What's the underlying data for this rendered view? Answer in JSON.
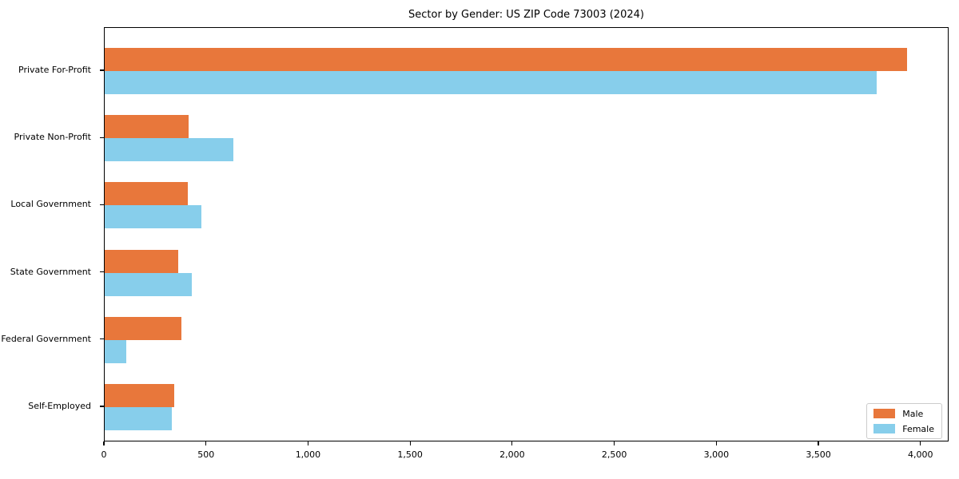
{
  "chart_data": {
    "type": "bar",
    "orientation": "horizontal",
    "title": "Sector by Gender: US ZIP Code 73003 (2024)",
    "categories": [
      "Private For-Profit",
      "Private Non-Profit",
      "Local Government",
      "State Government",
      "Federal Government",
      "Self-Employed"
    ],
    "series": [
      {
        "name": "Male",
        "color": "#e8773b",
        "values": [
          3930,
          410,
          405,
          360,
          375,
          340
        ]
      },
      {
        "name": "Female",
        "color": "#87ceeb",
        "values": [
          3780,
          630,
          475,
          425,
          105,
          330
        ]
      }
    ],
    "xlabel": "",
    "ylabel": "",
    "xlim": [
      0,
      4130
    ],
    "x_ticks": [
      0,
      500,
      1000,
      1500,
      2000,
      2500,
      3000,
      3500,
      4000
    ],
    "x_tick_labels": [
      "0",
      "500",
      "1,000",
      "1,500",
      "2,000",
      "2,500",
      "3,000",
      "3,500",
      "4,000"
    ],
    "grid": false,
    "legend_position": "lower right",
    "background_color": "#ffffff",
    "axis_color": "#000000"
  }
}
